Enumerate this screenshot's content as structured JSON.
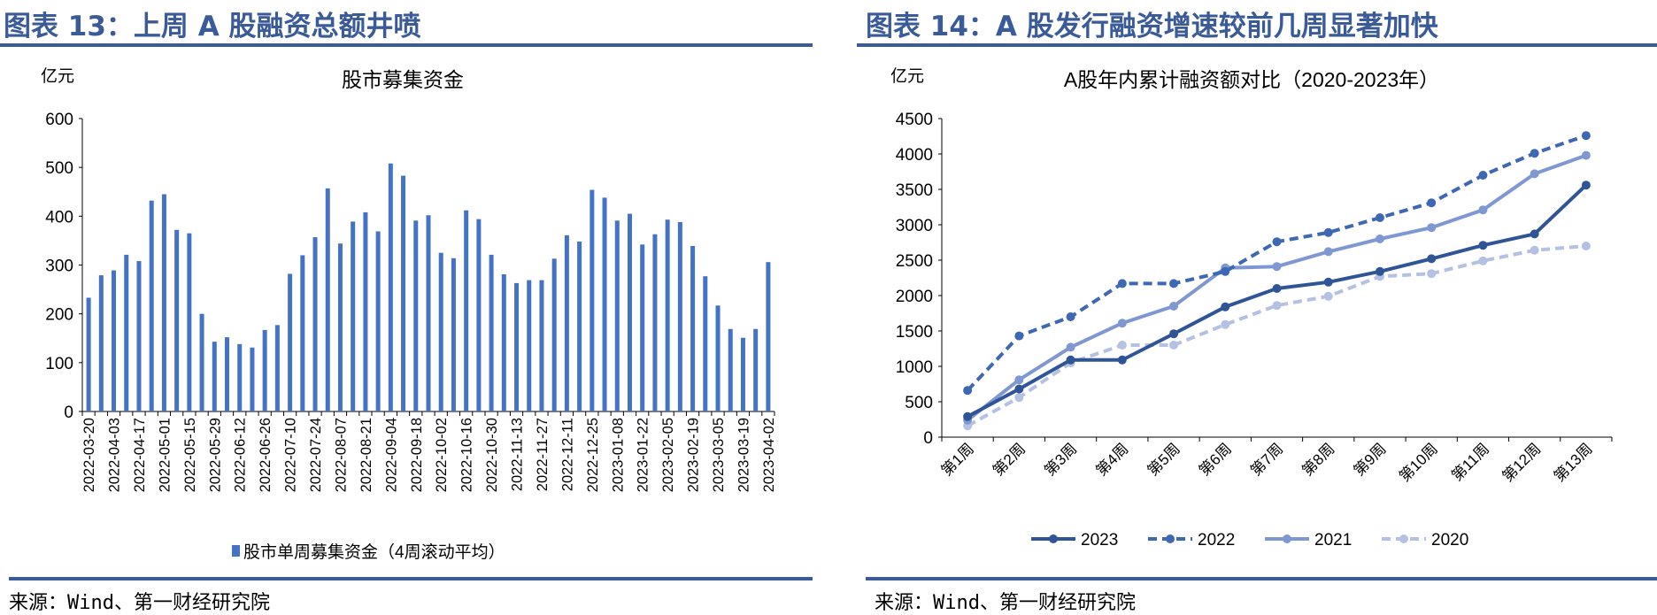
{
  "left": {
    "heading": "图表 13：上周 A 股融资总额井喷",
    "source": "来源：Wind、第一财经研究院",
    "colors": {
      "bar": "#4472c4",
      "heading": "#3a5a98"
    }
  },
  "right": {
    "heading": "图表 14：A 股发行融资增速较前几周显著加快",
    "source": "来源：Wind、第一财经研究院",
    "colors": {
      "heading": "#3a5a98"
    }
  },
  "chart_data": [
    {
      "type": "bar",
      "title": "股市募集资金",
      "ylabel": "亿元",
      "xlabel": "",
      "ylim": [
        0,
        600
      ],
      "yticks": [
        0,
        100,
        200,
        300,
        400,
        500,
        600
      ],
      "grid": false,
      "legend": "bottom",
      "categories": [
        "2022-03-20",
        "2022-03-27",
        "2022-04-03",
        "2022-04-10",
        "2022-04-17",
        "2022-04-24",
        "2022-05-01",
        "2022-05-08",
        "2022-05-15",
        "2022-05-22",
        "2022-05-29",
        "2022-06-05",
        "2022-06-12",
        "2022-06-19",
        "2022-06-26",
        "2022-07-03",
        "2022-07-10",
        "2022-07-17",
        "2022-07-24",
        "2022-07-31",
        "2022-08-07",
        "2022-08-14",
        "2022-08-21",
        "2022-08-28",
        "2022-09-04",
        "2022-09-11",
        "2022-09-18",
        "2022-09-25",
        "2022-10-02",
        "2022-10-09",
        "2022-10-16",
        "2022-10-23",
        "2022-10-30",
        "2022-11-06",
        "2022-11-13",
        "2022-11-20",
        "2022-11-27",
        "2022-12-04",
        "2022-12-11",
        "2022-12-18",
        "2022-12-25",
        "2023-01-01",
        "2023-01-08",
        "2023-01-15",
        "2023-01-22",
        "2023-01-29",
        "2023-02-05",
        "2023-02-12",
        "2023-02-19",
        "2023-02-26",
        "2023-03-05",
        "2023-03-12",
        "2023-03-19",
        "2023-03-26",
        "2023-04-02"
      ],
      "tick_labels": [
        "2022-03-20",
        "2022-04-03",
        "2022-04-17",
        "2022-05-01",
        "2022-05-15",
        "2022-05-29",
        "2022-06-12",
        "2022-06-26",
        "2022-07-10",
        "2022-07-24",
        "2022-08-07",
        "2022-08-21",
        "2022-09-04",
        "2022-09-18",
        "2022-10-02",
        "2022-10-16",
        "2022-10-30",
        "2022-11-13",
        "2022-11-27",
        "2022-12-11",
        "2022-12-25",
        "2023-01-08",
        "2023-01-22",
        "2023-02-05",
        "2023-02-19",
        "2023-03-05",
        "2023-03-19",
        "2023-04-02"
      ],
      "series": [
        {
          "name": "股市单周募集资金（4周滚动平均）",
          "color": "#4472c4",
          "values": [
            233,
            279,
            289,
            321,
            308,
            432,
            445,
            372,
            365,
            200,
            143,
            152,
            138,
            131,
            167,
            177,
            282,
            320,
            357,
            457,
            344,
            389,
            408,
            369,
            508,
            483,
            391,
            402,
            325,
            314,
            412,
            394,
            321,
            281,
            263,
            269,
            269,
            313,
            361,
            348,
            454,
            438,
            391,
            405,
            342,
            363,
            393,
            388,
            339,
            277,
            217,
            169,
            151,
            169,
            306
          ]
        }
      ]
    },
    {
      "type": "line",
      "title": "A股年内累计融资额对比（2020-2023年）",
      "ylabel": "亿元",
      "xlabel": "",
      "ylim": [
        0,
        4500
      ],
      "yticks": [
        0,
        500,
        1000,
        1500,
        2000,
        2500,
        3000,
        3500,
        4000,
        4500
      ],
      "grid": false,
      "legend": "bottom",
      "categories": [
        "第1周",
        "第2周",
        "第3周",
        "第4周",
        "第5周",
        "第6周",
        "第7周",
        "第8周",
        "第9周",
        "第10周",
        "第11周",
        "第12周",
        "第13周"
      ],
      "series": [
        {
          "name": "2023",
          "color": "#2f5597",
          "dash": false,
          "values": [
            290,
            680,
            1090,
            1090,
            1460,
            1840,
            2100,
            2190,
            2340,
            2520,
            2710,
            2870,
            3560
          ]
        },
        {
          "name": "2022",
          "color": "#3e68b4",
          "dash": true,
          "values": [
            660,
            1430,
            1700,
            2170,
            2170,
            2340,
            2760,
            2890,
            3100,
            3310,
            3700,
            4010,
            4260
          ]
        },
        {
          "name": "2021",
          "color": "#7f98d2",
          "dash": false,
          "values": [
            240,
            810,
            1270,
            1610,
            1850,
            2390,
            2410,
            2620,
            2800,
            2960,
            3210,
            3720,
            3980
          ]
        },
        {
          "name": "2020",
          "color": "#b4c1e2",
          "dash": true,
          "values": [
            160,
            560,
            1050,
            1300,
            1300,
            1590,
            1860,
            1990,
            2270,
            2310,
            2490,
            2640,
            2700
          ]
        }
      ]
    }
  ]
}
